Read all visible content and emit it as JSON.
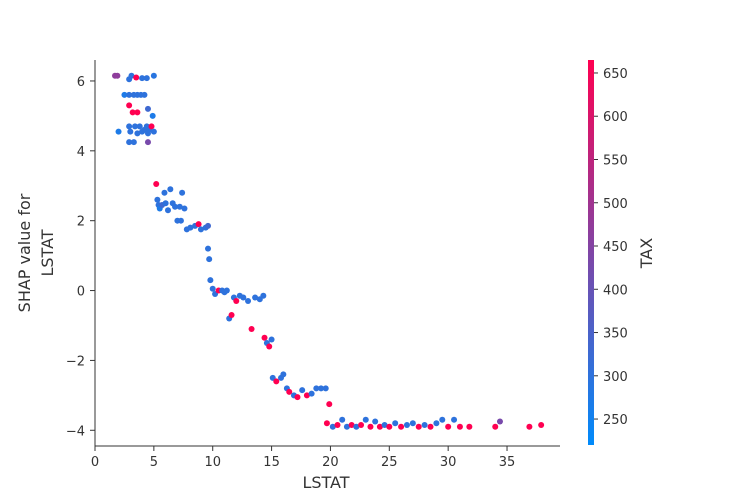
{
  "chart_data": {
    "type": "scatter",
    "xlabel": "LSTAT",
    "ylabel_lines": [
      "SHAP value for",
      "LSTAT"
    ],
    "xlim": [
      0,
      39.5
    ],
    "ylim": [
      -4.45,
      6.6
    ],
    "xticks": [
      0,
      5,
      10,
      15,
      20,
      25,
      30,
      35
    ],
    "yticks": [
      -4,
      -2,
      0,
      2,
      4,
      6
    ],
    "grid": false,
    "colorbar": {
      "label": "TAX",
      "range": [
        220,
        665
      ],
      "ticks": [
        250,
        300,
        350,
        400,
        450,
        500,
        550,
        600,
        650
      ],
      "colormap": [
        "#008bfb",
        "#ff0051"
      ]
    },
    "series": [
      {
        "points": [
          [
            1.7,
            6.15,
            469
          ],
          [
            1.9,
            6.15,
            469
          ],
          [
            2.9,
            6.05,
            300
          ],
          [
            3.1,
            6.15,
            300
          ],
          [
            3.5,
            6.1,
            666
          ],
          [
            4.0,
            6.08,
            300
          ],
          [
            4.4,
            6.08,
            300
          ],
          [
            5.0,
            6.15,
            290
          ],
          [
            2.5,
            5.6,
            270
          ],
          [
            2.9,
            5.6,
            300
          ],
          [
            3.3,
            5.6,
            300
          ],
          [
            3.6,
            5.6,
            300
          ],
          [
            3.9,
            5.6,
            300
          ],
          [
            4.2,
            5.6,
            300
          ],
          [
            2.9,
            5.3,
            666
          ],
          [
            3.2,
            5.1,
            666
          ],
          [
            3.6,
            5.1,
            666
          ],
          [
            4.5,
            5.2,
            330
          ],
          [
            4.9,
            5.0,
            270
          ],
          [
            2.0,
            4.55,
            270
          ],
          [
            2.9,
            4.7,
            300
          ],
          [
            3.0,
            4.55,
            300
          ],
          [
            3.4,
            4.7,
            300
          ],
          [
            3.6,
            4.5,
            300
          ],
          [
            3.8,
            4.7,
            300
          ],
          [
            4.0,
            4.55,
            300
          ],
          [
            4.2,
            4.6,
            300
          ],
          [
            4.4,
            4.7,
            300
          ],
          [
            4.5,
            4.5,
            300
          ],
          [
            4.6,
            4.6,
            300
          ],
          [
            4.8,
            4.7,
            666
          ],
          [
            5.0,
            4.55,
            300
          ],
          [
            2.9,
            4.25,
            300
          ],
          [
            3.3,
            4.25,
            300
          ],
          [
            4.5,
            4.25,
            430
          ],
          [
            5.2,
            3.05,
            666
          ],
          [
            5.3,
            2.6,
            300
          ],
          [
            5.4,
            2.45,
            300
          ],
          [
            5.5,
            2.35,
            270
          ],
          [
            5.7,
            2.45,
            330
          ],
          [
            5.9,
            2.8,
            300
          ],
          [
            6.0,
            2.5,
            300
          ],
          [
            6.2,
            2.3,
            300
          ],
          [
            6.4,
            2.9,
            300
          ],
          [
            6.6,
            2.5,
            300
          ],
          [
            6.8,
            2.4,
            300
          ],
          [
            7.0,
            2.0,
            300
          ],
          [
            7.2,
            2.4,
            300
          ],
          [
            7.4,
            2.8,
            300
          ],
          [
            7.6,
            2.35,
            300
          ],
          [
            7.3,
            2.0,
            300
          ],
          [
            7.8,
            1.75,
            300
          ],
          [
            8.1,
            1.8,
            300
          ],
          [
            8.5,
            1.85,
            300
          ],
          [
            8.8,
            1.9,
            666
          ],
          [
            9.0,
            1.75,
            300
          ],
          [
            9.4,
            1.8,
            300
          ],
          [
            9.6,
            1.85,
            330
          ],
          [
            9.6,
            1.2,
            300
          ],
          [
            9.7,
            0.9,
            300
          ],
          [
            9.8,
            0.3,
            300
          ],
          [
            10.0,
            0.05,
            300
          ],
          [
            10.2,
            -0.1,
            300
          ],
          [
            10.5,
            0.0,
            666
          ],
          [
            10.8,
            0.0,
            300
          ],
          [
            11.0,
            -0.05,
            300
          ],
          [
            11.2,
            0.0,
            300
          ],
          [
            11.4,
            -0.8,
            300
          ],
          [
            11.6,
            -0.7,
            666
          ],
          [
            11.8,
            -0.2,
            300
          ],
          [
            12.0,
            -0.3,
            666
          ],
          [
            12.3,
            -0.15,
            300
          ],
          [
            12.6,
            -0.2,
            300
          ],
          [
            13.0,
            -0.3,
            300
          ],
          [
            13.3,
            -1.1,
            666
          ],
          [
            13.6,
            -0.2,
            300
          ],
          [
            14.0,
            -0.25,
            300
          ],
          [
            14.3,
            -0.15,
            300
          ],
          [
            14.4,
            -1.35,
            666
          ],
          [
            14.6,
            -1.5,
            300
          ],
          [
            14.8,
            -1.6,
            666
          ],
          [
            15.0,
            -1.4,
            300
          ],
          [
            15.1,
            -2.5,
            300
          ],
          [
            15.4,
            -2.6,
            666
          ],
          [
            15.8,
            -2.5,
            300
          ],
          [
            16.0,
            -2.4,
            300
          ],
          [
            16.3,
            -2.8,
            300
          ],
          [
            16.5,
            -2.9,
            666
          ],
          [
            16.9,
            -3.0,
            300
          ],
          [
            17.2,
            -3.05,
            666
          ],
          [
            17.6,
            -2.85,
            300
          ],
          [
            18.0,
            -3.0,
            666
          ],
          [
            18.4,
            -2.95,
            300
          ],
          [
            18.8,
            -2.8,
            300
          ],
          [
            19.2,
            -2.8,
            300
          ],
          [
            19.6,
            -2.8,
            300
          ],
          [
            19.9,
            -3.25,
            666
          ],
          [
            19.7,
            -3.8,
            666
          ],
          [
            20.2,
            -3.9,
            300
          ],
          [
            20.6,
            -3.85,
            666
          ],
          [
            21.0,
            -3.7,
            300
          ],
          [
            21.4,
            -3.9,
            300
          ],
          [
            21.8,
            -3.85,
            666
          ],
          [
            22.2,
            -3.9,
            300
          ],
          [
            22.6,
            -3.85,
            666
          ],
          [
            23.0,
            -3.7,
            300
          ],
          [
            23.4,
            -3.9,
            666
          ],
          [
            23.8,
            -3.75,
            300
          ],
          [
            24.2,
            -3.9,
            666
          ],
          [
            24.6,
            -3.85,
            300
          ],
          [
            25.0,
            -3.9,
            666
          ],
          [
            25.5,
            -3.8,
            300
          ],
          [
            26.0,
            -3.9,
            666
          ],
          [
            26.5,
            -3.85,
            300
          ],
          [
            27.0,
            -3.8,
            300
          ],
          [
            27.5,
            -3.9,
            666
          ],
          [
            28.0,
            -3.85,
            300
          ],
          [
            28.5,
            -3.9,
            666
          ],
          [
            29.0,
            -3.8,
            300
          ],
          [
            29.5,
            -3.7,
            300
          ],
          [
            30.0,
            -3.9,
            666
          ],
          [
            30.5,
            -3.7,
            300
          ],
          [
            31.0,
            -3.9,
            666
          ],
          [
            31.8,
            -3.9,
            666
          ],
          [
            34.0,
            -3.9,
            666
          ],
          [
            34.4,
            -3.75,
            430
          ],
          [
            36.9,
            -3.9,
            666
          ],
          [
            37.9,
            -3.85,
            666
          ]
        ]
      }
    ]
  }
}
